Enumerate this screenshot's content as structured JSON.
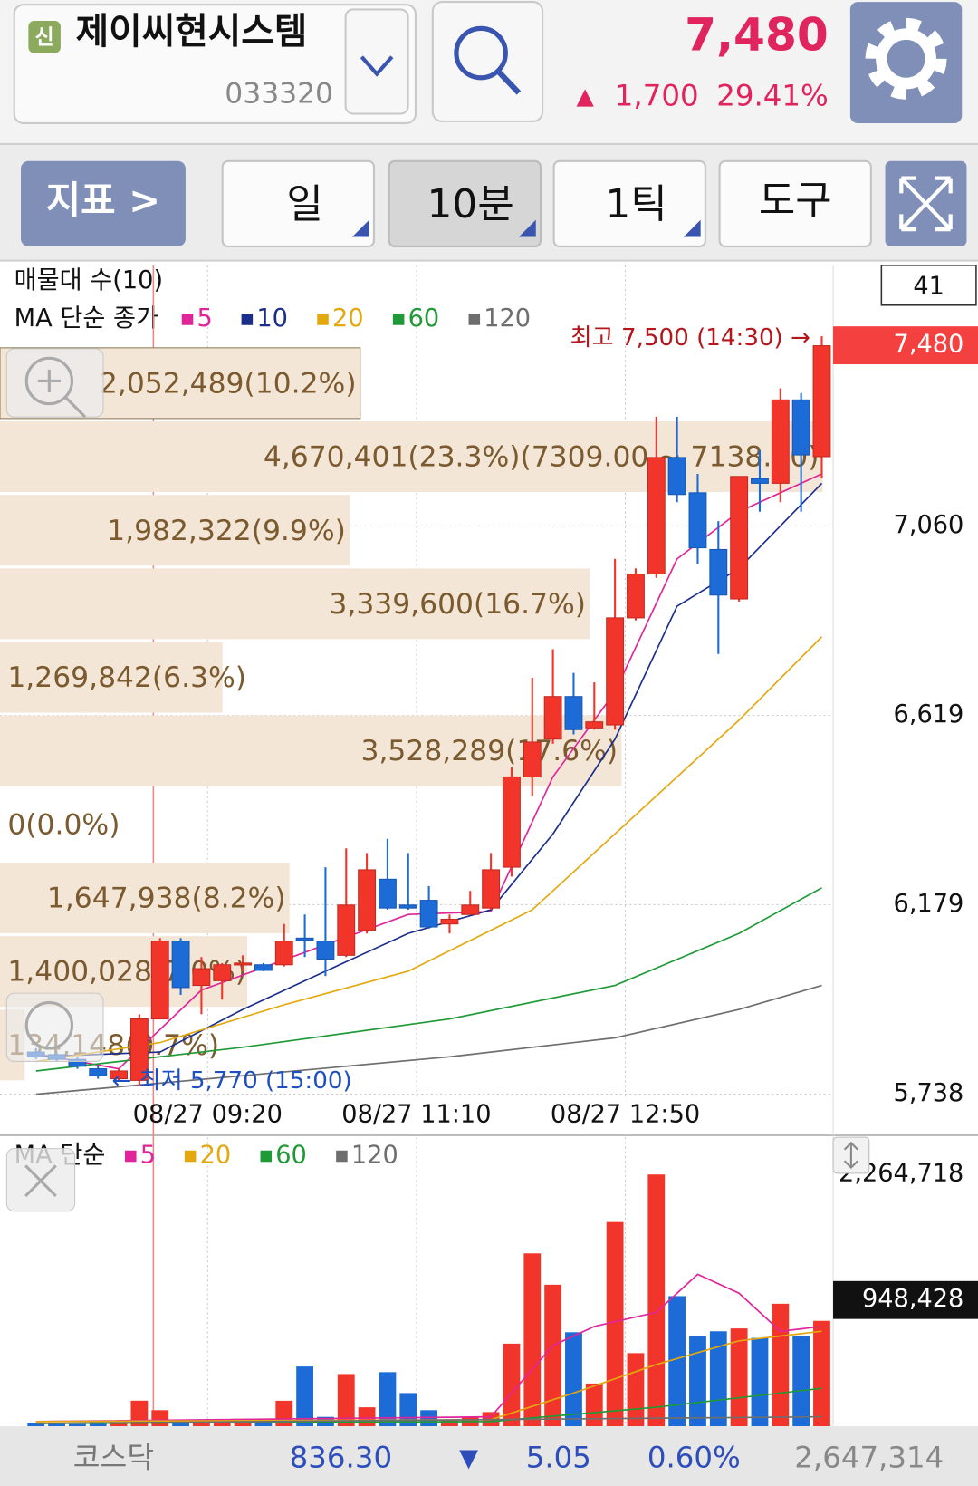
{
  "header": {
    "badge": "신",
    "name": "제이씨현시스템",
    "code": "033320",
    "price": "7,480",
    "arrow": "▲",
    "change": "1,700",
    "rate": "29.41%"
  },
  "toolbar": {
    "indicator": "지표 >",
    "period": "일",
    "interval": "10분",
    "tick": "1틱",
    "tools": "도구"
  },
  "footer": {
    "market": "코스닥",
    "index": "836.30",
    "arrow": "▼",
    "change": "5.05",
    "rate": "0.60%",
    "volume": "2,647,314"
  },
  "chart_data": [
    {
      "type": "candlestick",
      "title": "매물대 수(10)",
      "subtitle": "MA 단순 종가",
      "counter": "41",
      "up_color": "#f2352a",
      "down_color": "#1c6bd6",
      "open": [
        5836,
        5830,
        5819,
        5797,
        5774,
        5770,
        5913,
        6094,
        5991,
        6002,
        6039,
        6039,
        6039,
        6101,
        6094,
        6061,
        6119,
        6238,
        6178,
        6189,
        6134,
        6156,
        6171,
        6266,
        6476,
        6564,
        6663,
        6590,
        6597,
        6846,
        6948,
        7219,
        7137,
        7005,
        6890,
        7170,
        7159,
        7353,
        7221
      ],
      "high": [
        5845,
        5836,
        5825,
        5803,
        5797,
        5924,
        6101,
        6101,
        6057,
        6043,
        6061,
        6043,
        6134,
        6156,
        6266,
        6310,
        6299,
        6332,
        6299,
        6222,
        6156,
        6211,
        6299,
        6498,
        6707,
        6773,
        6718,
        6696,
        6983,
        6961,
        7314,
        7314,
        7181,
        7071,
        7175,
        7236,
        7380,
        7369,
        7501
      ],
      "low": [
        5820,
        5814,
        5797,
        5774,
        5770,
        5759,
        5913,
        5969,
        5924,
        5958,
        6024,
        6024,
        6035,
        6057,
        6013,
        6057,
        6112,
        6167,
        6167,
        6123,
        6112,
        6156,
        6167,
        6244,
        6432,
        6553,
        6575,
        6586,
        6586,
        6840,
        6939,
        7115,
        6972,
        6762,
        6884,
        7093,
        7115,
        7093,
        7170
      ],
      "close": [
        5825,
        5819,
        5803,
        5781,
        5792,
        5913,
        6094,
        5986,
        6030,
        6039,
        6043,
        6026,
        6094,
        6096,
        6052,
        6178,
        6260,
        6171,
        6171,
        6127,
        6145,
        6178,
        6260,
        6476,
        6557,
        6663,
        6586,
        6604,
        6846,
        6948,
        7219,
        7133,
        7009,
        6899,
        7175,
        7159,
        7353,
        7225,
        7479
      ],
      "xlim": [
        -1.74,
        38.55
      ],
      "xticks": [
        {
          "value": 8.3,
          "label": "08/27 09:20"
        },
        {
          "value": 18.4,
          "label": "08/27 11:10"
        },
        {
          "value": 28.5,
          "label": "08/27 12:50"
        }
      ],
      "ylim": [
        5726,
        7666
      ],
      "yticks": [
        {
          "value": 5738,
          "label": "5,738"
        },
        {
          "value": 6179,
          "label": "6,179"
        },
        {
          "value": 6619,
          "label": "6,619"
        },
        {
          "value": 7060,
          "label": "7,060"
        }
      ],
      "current": {
        "value": 7480,
        "label": "7,480"
      },
      "annotations": [
        "최고 7,500 (14:30) →",
        "← 최저 5,770 (15:00)"
      ],
      "profile": {
        "values": [
          10.2,
          23.3,
          9.9,
          16.7,
          6.3,
          17.6,
          0.0,
          8.2,
          7.0,
          0.7
        ],
        "value_labels": [
          "2,052,489(10.2%)",
          "4,670,401(23.3%)(7309.00 ~ 7138.00)",
          "1,982,322(9.9%)",
          "3,339,600(16.7%)",
          "1,269,842(6.3%)",
          "3,528,289(17.6%)",
          "0(0.0%)",
          "1,647,938(8.2%)",
          "1,400,028(7.0%)",
          "134,148(0.7%)"
        ]
      },
      "series": [
        {
          "name": "5",
          "color": "#e0259b",
          "x": [
            0,
            4,
            8,
            13,
            18,
            22,
            25,
            28,
            31,
            34,
            38
          ],
          "values": [
            5832,
            5797,
            5980,
            6068,
            6156,
            6163,
            6476,
            6674,
            6983,
            7093,
            7181
          ]
        },
        {
          "name": "10",
          "color": "#1b2e8c",
          "x": [
            0,
            6,
            10,
            14,
            18,
            22,
            25,
            28,
            31,
            34,
            38
          ],
          "values": [
            5825,
            5836,
            5935,
            6024,
            6112,
            6167,
            6343,
            6564,
            6873,
            6961,
            7159
          ]
        },
        {
          "name": "20",
          "color": "#e3a80e",
          "x": [
            0,
            6,
            12,
            18,
            24,
            30,
            34,
            38
          ],
          "values": [
            5814,
            5858,
            5946,
            6024,
            6167,
            6432,
            6608,
            6802
          ]
        },
        {
          "name": "60",
          "color": "#1f9a36",
          "x": [
            0,
            10,
            20,
            28,
            34,
            38
          ],
          "values": [
            5792,
            5847,
            5913,
            5991,
            6112,
            6218
          ]
        },
        {
          "name": "120",
          "color": "#6e6e6e",
          "x": [
            0,
            10,
            20,
            28,
            34,
            38
          ],
          "values": [
            5738,
            5781,
            5825,
            5869,
            5935,
            5991
          ]
        }
      ]
    },
    {
      "type": "bar",
      "subtitle": "MA 단순",
      "values": [
        30000,
        25000,
        20000,
        30000,
        25000,
        230742,
        145000,
        60000,
        60000,
        55000,
        40000,
        40000,
        230000,
        538000,
        85000,
        470000,
        171000,
        487000,
        299000,
        145000,
        60000,
        85000,
        128000,
        743500,
        1555400,
        1273400,
        846000,
        384600,
        1837400,
        658000,
        2264718,
        1170800,
        811900,
        854600,
        880200,
        794800,
        1102400,
        811900,
        948428
      ],
      "ylim": [
        0,
        2600000
      ],
      "yticks": [
        {
          "value": 2264718,
          "label": "2,264,718"
        }
      ],
      "current": {
        "value": 948428,
        "label": "948,428"
      },
      "series": [
        {
          "name": "5",
          "color": "#e0259b",
          "x": [
            0,
            22,
            25,
            27,
            30,
            32,
            34,
            36,
            38
          ],
          "values": [
            42730,
            85460,
            726410,
            897330,
            1025520,
            1367360,
            1196440,
            854600,
            897330
          ]
        },
        {
          "name": "20",
          "color": "#e3a80e",
          "x": [
            0,
            22,
            26,
            30,
            34,
            38
          ],
          "values": [
            42730,
            59822,
            299110,
            555490,
            769140,
            854600
          ]
        },
        {
          "name": "60",
          "color": "#1f9a36",
          "x": [
            0,
            22,
            30,
            38
          ],
          "values": [
            25638,
            42730,
            170920,
            341840
          ]
        },
        {
          "name": "120",
          "color": "#6e6e6e",
          "x": [
            0,
            38
          ],
          "values": [
            25638,
            85460
          ]
        }
      ]
    }
  ]
}
